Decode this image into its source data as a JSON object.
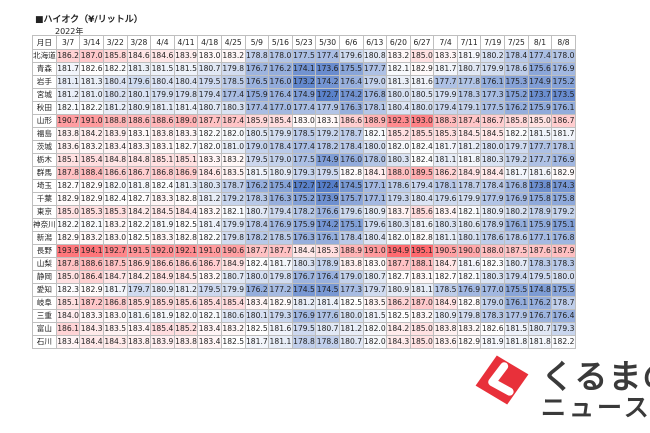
{
  "title": "■ハイオク（¥/リットル）",
  "year_label": "2022年",
  "corner_label": "月日",
  "brand": {
    "line1": "くるまの",
    "line2": "ニュース",
    "color": "#e8303a"
  },
  "chart_data": {
    "type": "table",
    "title": "■ハイオク（¥/リットル）",
    "columns": [
      "3/7",
      "3/14",
      "3/22",
      "3/28",
      "4/4",
      "4/11",
      "4/18",
      "4/25",
      "5/9",
      "5/16",
      "5/23",
      "5/30",
      "6/6",
      "6/13",
      "6/20",
      "6/27",
      "7/4",
      "7/11",
      "7/19",
      "7/25",
      "8/1",
      "8/8"
    ],
    "rows": [
      {
        "pref": "北海道",
        "values": [
          186.2,
          187.0,
          185.8,
          184.6,
          184.6,
          183.9,
          183.0,
          183.2,
          178.8,
          178.0,
          177.5,
          177.4,
          179.6,
          180.8,
          183.2,
          185.0,
          183.3,
          181.9,
          180.2,
          178.4,
          177.4,
          178.0
        ]
      },
      {
        "pref": "青森",
        "values": [
          181.7,
          182.6,
          182.2,
          181.3,
          181.5,
          181.5,
          180.7,
          179.8,
          176.7,
          176.2,
          174.1,
          173.6,
          175.5,
          177.7,
          182.1,
          182.9,
          181.7,
          180.7,
          179.9,
          178.6,
          175.6,
          176.9
        ]
      },
      {
        "pref": "岩手",
        "values": [
          181.1,
          181.3,
          180.4,
          179.6,
          180.4,
          180.4,
          179.5,
          178.5,
          176.5,
          176.0,
          173.2,
          174.2,
          176.4,
          179.0,
          181.3,
          181.6,
          177.7,
          177.8,
          176.1,
          175.3,
          174.9,
          175.2
        ]
      },
      {
        "pref": "宮城",
        "values": [
          181.2,
          181.0,
          180.2,
          180.1,
          179.9,
          179.8,
          179.4,
          177.4,
          175.9,
          176.4,
          174.9,
          172.7,
          174.2,
          176.8,
          180.0,
          180.5,
          179.9,
          178.3,
          177.3,
          175.2,
          173.7,
          173.5
        ]
      },
      {
        "pref": "秋田",
        "values": [
          182.1,
          182.2,
          181.2,
          180.9,
          181.1,
          181.4,
          180.7,
          180.3,
          177.4,
          177.0,
          177.4,
          177.9,
          176.3,
          178.1,
          180.4,
          180.0,
          179.4,
          179.1,
          177.5,
          176.2,
          175.9,
          176.1
        ]
      },
      {
        "pref": "山形",
        "values": [
          190.7,
          191.0,
          188.8,
          188.6,
          188.6,
          189.0,
          187.7,
          187.4,
          185.9,
          185.4,
          183.0,
          183.1,
          186.6,
          188.9,
          192.3,
          193.0,
          188.3,
          187.4,
          186.7,
          185.8,
          185.0,
          186.7
        ]
      },
      {
        "pref": "福島",
        "values": [
          183.8,
          184.2,
          183.9,
          183.1,
          183.8,
          183.3,
          182.2,
          182.0,
          180.5,
          179.9,
          178.5,
          179.2,
          178.7,
          182.1,
          185.2,
          185.5,
          185.3,
          184.5,
          184.5,
          182.2,
          181.5,
          181.7
        ]
      },
      {
        "pref": "茨城",
        "values": [
          183.6,
          183.2,
          183.4,
          183.3,
          183.1,
          182.7,
          182.0,
          181.0,
          179.0,
          178.4,
          177.4,
          178.2,
          178.4,
          180.0,
          182.0,
          182.4,
          181.7,
          181.2,
          180.0,
          179.7,
          177.7,
          178.1
        ]
      },
      {
        "pref": "栃木",
        "values": [
          185.1,
          185.4,
          184.8,
          184.8,
          185.1,
          185.1,
          183.3,
          183.2,
          179.5,
          179.0,
          177.5,
          174.9,
          176.0,
          178.0,
          180.3,
          182.4,
          181.1,
          181.8,
          180.3,
          179.2,
          177.7,
          176.9
        ]
      },
      {
        "pref": "群馬",
        "values": [
          187.8,
          188.4,
          186.6,
          186.7,
          186.8,
          186.9,
          184.6,
          183.5,
          181.5,
          180.9,
          179.3,
          179.5,
          182.8,
          184.1,
          188.0,
          189.5,
          186.2,
          184.9,
          184.4,
          181.7,
          181.6,
          182.9
        ]
      },
      {
        "pref": "埼玉",
        "values": [
          182.7,
          182.9,
          182.0,
          181.8,
          182.4,
          181.3,
          180.3,
          178.7,
          176.2,
          175.4,
          172.7,
          172.4,
          174.5,
          177.1,
          178.6,
          179.4,
          178.1,
          178.7,
          178.4,
          176.8,
          173.8,
          174.3
        ]
      },
      {
        "pref": "千葉",
        "values": [
          182.9,
          182.9,
          182.4,
          182.7,
          183.3,
          182.8,
          181.2,
          179.2,
          178.3,
          176.3,
          175.2,
          173.9,
          175.7,
          177.1,
          179.3,
          180.4,
          179.6,
          179.9,
          177.9,
          176.9,
          175.8,
          175.8
        ]
      },
      {
        "pref": "東京",
        "values": [
          185.0,
          185.3,
          185.3,
          184.2,
          184.5,
          184.4,
          183.2,
          182.1,
          180.7,
          179.4,
          178.2,
          176.6,
          179.6,
          180.9,
          183.7,
          185.6,
          183.4,
          182.1,
          180.9,
          180.2,
          178.9,
          179.2
        ]
      },
      {
        "pref": "神奈川",
        "values": [
          182.2,
          182.1,
          183.2,
          182.2,
          181.9,
          182.5,
          181.4,
          179.9,
          178.4,
          176.9,
          175.9,
          174.2,
          175.1,
          179.6,
          180.3,
          181.6,
          180.3,
          180.6,
          178.9,
          176.1,
          175.9,
          175.1
        ]
      },
      {
        "pref": "新潟",
        "values": [
          182.9,
          183.2,
          183.0,
          182.5,
          183.3,
          182.8,
          182.2,
          179.8,
          178.2,
          178.5,
          176.3,
          176.1,
          178.4,
          180.4,
          182.0,
          182.8,
          181.1,
          180.1,
          178.6,
          178.6,
          177.1,
          176.8
        ]
      },
      {
        "pref": "長野",
        "values": [
          193.9,
          194.1,
          192.7,
          191.5,
          192.0,
          192.1,
          191.0,
          190.6,
          187.7,
          187.7,
          184.4,
          185.3,
          188.9,
          191.0,
          194.9,
          195.1,
          190.5,
          190.0,
          188.0,
          187.5,
          187.6,
          187.9
        ]
      },
      {
        "pref": "山梨",
        "values": [
          187.8,
          188.6,
          187.5,
          186.9,
          186.6,
          186.6,
          186.7,
          184.9,
          182.4,
          181.7,
          180.3,
          178.9,
          183.8,
          183.0,
          187.7,
          188.1,
          184.7,
          181.6,
          182.3,
          180.7,
          178.3,
          178.3
        ]
      },
      {
        "pref": "静岡",
        "values": [
          185.0,
          186.4,
          184.7,
          184.2,
          184.9,
          184.5,
          183.2,
          180.7,
          180.0,
          179.8,
          176.7,
          176.4,
          179.0,
          180.7,
          182.7,
          183.1,
          182.7,
          182.1,
          180.3,
          179.4,
          179.5,
          180.0
        ]
      },
      {
        "pref": "愛知",
        "values": [
          182.3,
          182.9,
          181.7,
          179.7,
          180.9,
          181.2,
          179.5,
          179.9,
          176.2,
          177.2,
          174.5,
          174.5,
          177.3,
          179.7,
          180.9,
          181.1,
          178.5,
          176.9,
          177.0,
          175.5,
          174.8,
          175.5
        ]
      },
      {
        "pref": "岐阜",
        "values": [
          185.1,
          187.2,
          186.8,
          185.9,
          185.9,
          185.6,
          185.4,
          185.4,
          183.4,
          182.9,
          181.2,
          181.4,
          182.5,
          183.5,
          186.2,
          187.0,
          184.9,
          182.8,
          179.0,
          176.1,
          176.2,
          178.7
        ]
      },
      {
        "pref": "三重",
        "values": [
          184.0,
          183.3,
          183.0,
          181.6,
          181.9,
          182.0,
          182.1,
          180.6,
          180.1,
          179.3,
          176.9,
          177.6,
          180.0,
          181.5,
          182.5,
          183.2,
          180.9,
          179.8,
          178.3,
          177.9,
          176.7,
          176.4
        ]
      },
      {
        "pref": "富山",
        "values": [
          186.1,
          184.3,
          183.5,
          183.4,
          185.4,
          185.2,
          183.4,
          183.2,
          182.5,
          181.6,
          179.5,
          180.7,
          181.2,
          182.0,
          184.2,
          185.0,
          183.8,
          183.2,
          182.6,
          181.5,
          180.7,
          179.3
        ]
      },
      {
        "pref": "石川",
        "values": [
          183.4,
          184.4,
          184.3,
          183.8,
          183.9,
          183.8,
          183.4,
          182.5,
          181.7,
          181.1,
          178.8,
          178.8,
          180.7,
          182.0,
          184.3,
          185.0,
          183.6,
          182.9,
          181.9,
          181.8,
          181.8,
          182.2
        ]
      }
    ]
  }
}
